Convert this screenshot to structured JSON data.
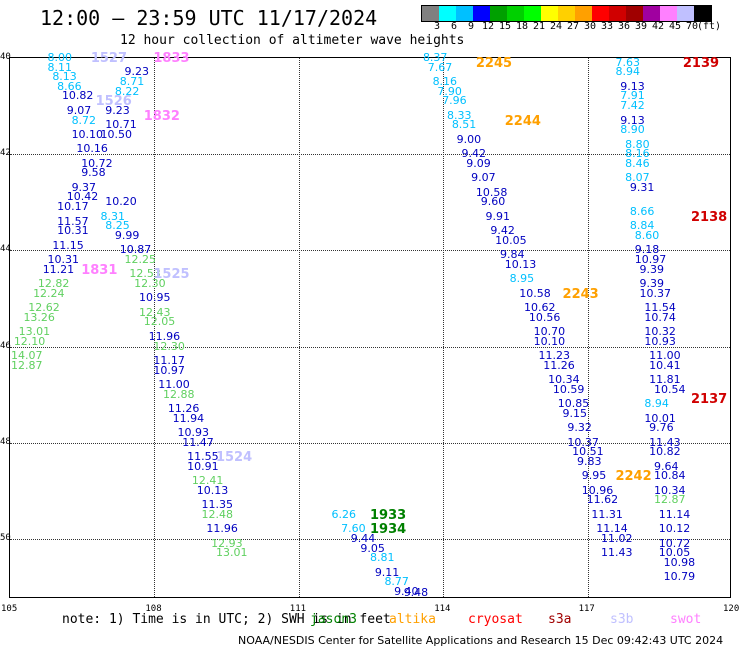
{
  "title": "12:00 — 23:59 UTC 11/17/2024",
  "subtitle": "12 hour collection of altimeter wave heights",
  "colorbar": {
    "colors": [
      "#808080",
      "#00ffff",
      "#00c0ff",
      "#0000ff",
      "#00a000",
      "#00d000",
      "#00ff00",
      "#ffff00",
      "#ffd000",
      "#ffa000",
      "#ff0000",
      "#d00000",
      "#a00000",
      "#a000a0",
      "#ff80ff",
      "#c0c0ff",
      "#000000"
    ],
    "ticks": [
      "3",
      "6",
      "9",
      "12",
      "15",
      "18",
      "21",
      "24",
      "27",
      "30",
      "33",
      "36",
      "39",
      "42",
      "45",
      "70",
      "(ft)"
    ]
  },
  "axes": {
    "lat_labels": [
      "40",
      "42",
      "44",
      "46",
      "48",
      "50"
    ],
    "lon_labels": [
      "105",
      "108",
      "111",
      "114",
      "117",
      "120"
    ]
  },
  "observations": [
    {
      "value": "8.00",
      "lon": 105.8,
      "lat": 40.0,
      "color": "#00c0ff"
    },
    {
      "value": "8.11",
      "lon": 105.8,
      "lat": 40.2,
      "color": "#00c0ff"
    },
    {
      "value": "8.13",
      "lon": 105.9,
      "lat": 40.4,
      "color": "#00c0ff"
    },
    {
      "value": "8.66",
      "lon": 106.0,
      "lat": 40.6,
      "color": "#00c0ff"
    },
    {
      "value": "10.82",
      "lon": 106.1,
      "lat": 40.8,
      "color": "#0000c0"
    },
    {
      "value": "9.07",
      "lon": 106.2,
      "lat": 41.1,
      "color": "#0000c0"
    },
    {
      "value": "8.72",
      "lon": 106.3,
      "lat": 41.3,
      "color": "#00c0ff"
    },
    {
      "value": "10.10",
      "lon": 106.3,
      "lat": 41.6,
      "color": "#0000c0"
    },
    {
      "value": "10.16",
      "lon": 106.4,
      "lat": 41.9,
      "color": "#0000c0"
    },
    {
      "value": "10.72",
      "lon": 106.5,
      "lat": 42.2,
      "color": "#0000c0"
    },
    {
      "value": "9.58",
      "lon": 106.5,
      "lat": 42.4,
      "color": "#0000c0"
    },
    {
      "value": "9.37",
      "lon": 106.3,
      "lat": 42.7,
      "color": "#0000c0"
    },
    {
      "value": "10.42",
      "lon": 106.2,
      "lat": 42.9,
      "color": "#0000c0"
    },
    {
      "value": "10.17",
      "lon": 106.0,
      "lat": 43.1,
      "color": "#0000c0"
    },
    {
      "value": "11.57",
      "lon": 106.0,
      "lat": 43.4,
      "color": "#0000c0"
    },
    {
      "value": "10.31",
      "lon": 106.0,
      "lat": 43.6,
      "color": "#0000c0"
    },
    {
      "value": "11.15",
      "lon": 105.9,
      "lat": 43.9,
      "color": "#0000c0"
    },
    {
      "value": "10.31",
      "lon": 105.8,
      "lat": 44.2,
      "color": "#0000c0"
    },
    {
      "value": "11.21",
      "lon": 105.7,
      "lat": 44.4,
      "color": "#0000c0"
    },
    {
      "value": "12.82",
      "lon": 105.6,
      "lat": 44.7,
      "color": "#60d060"
    },
    {
      "value": "12.24",
      "lon": 105.5,
      "lat": 44.9,
      "color": "#60d060"
    },
    {
      "value": "12.62",
      "lon": 105.4,
      "lat": 45.2,
      "color": "#60d060"
    },
    {
      "value": "13.26",
      "lon": 105.3,
      "lat": 45.4,
      "color": "#60d060"
    },
    {
      "value": "13.01",
      "lon": 105.2,
      "lat": 45.7,
      "color": "#60d060"
    },
    {
      "value": "12.10",
      "lon": 105.1,
      "lat": 45.9,
      "color": "#60d060"
    },
    {
      "value": "14.07",
      "lon": 105.0,
      "lat": 46.2,
      "color": "#60d060"
    },
    {
      "value": "12.87",
      "lon": 105.0,
      "lat": 46.4,
      "color": "#60d060"
    },
    {
      "value": "9.23",
      "lon": 107.4,
      "lat": 40.3,
      "color": "#0000c0"
    },
    {
      "value": "8.71",
      "lon": 107.3,
      "lat": 40.5,
      "color": "#00c0ff"
    },
    {
      "value": "8.22",
      "lon": 107.2,
      "lat": 40.7,
      "color": "#00c0ff"
    },
    {
      "value": "9.23",
      "lon": 107.0,
      "lat": 41.1,
      "color": "#0000c0"
    },
    {
      "value": "10.71",
      "lon": 107.0,
      "lat": 41.4,
      "color": "#0000c0"
    },
    {
      "value": "10.50",
      "lon": 106.9,
      "lat": 41.6,
      "color": "#0000c0"
    },
    {
      "value": "10.20",
      "lon": 107.0,
      "lat": 43.0,
      "color": "#0000c0"
    },
    {
      "value": "8.31",
      "lon": 106.9,
      "lat": 43.3,
      "color": "#00c0ff"
    },
    {
      "value": "8.25",
      "lon": 107.0,
      "lat": 43.5,
      "color": "#00c0ff"
    },
    {
      "value": "9.99",
      "lon": 107.2,
      "lat": 43.7,
      "color": "#0000c0"
    },
    {
      "value": "10.87",
      "lon": 107.3,
      "lat": 44.0,
      "color": "#0000c0"
    },
    {
      "value": "12.25",
      "lon": 107.4,
      "lat": 44.2,
      "color": "#60d060"
    },
    {
      "value": "12.53",
      "lon": 107.5,
      "lat": 44.5,
      "color": "#60d060"
    },
    {
      "value": "12.30",
      "lon": 107.6,
      "lat": 44.7,
      "color": "#60d060"
    },
    {
      "value": "10.95",
      "lon": 107.7,
      "lat": 45.0,
      "color": "#0000c0"
    },
    {
      "value": "12.43",
      "lon": 107.7,
      "lat": 45.3,
      "color": "#60d060"
    },
    {
      "value": "12.05",
      "lon": 107.8,
      "lat": 45.5,
      "color": "#60d060"
    },
    {
      "value": "11.96",
      "lon": 107.9,
      "lat": 45.8,
      "color": "#0000c0"
    },
    {
      "value": "12.30",
      "lon": 108.0,
      "lat": 46.0,
      "color": "#60d060"
    },
    {
      "value": "11.17",
      "lon": 108.0,
      "lat": 46.3,
      "color": "#0000c0"
    },
    {
      "value": "10.97",
      "lon": 108.0,
      "lat": 46.5,
      "color": "#0000c0"
    },
    {
      "value": "11.00",
      "lon": 108.1,
      "lat": 46.8,
      "color": "#0000c0"
    },
    {
      "value": "12.88",
      "lon": 108.2,
      "lat": 47.0,
      "color": "#60d060"
    },
    {
      "value": "11.26",
      "lon": 108.3,
      "lat": 47.3,
      "color": "#0000c0"
    },
    {
      "value": "11.94",
      "lon": 108.4,
      "lat": 47.5,
      "color": "#0000c0"
    },
    {
      "value": "10.93",
      "lon": 108.5,
      "lat": 47.8,
      "color": "#0000c0"
    },
    {
      "value": "11.47",
      "lon": 108.6,
      "lat": 48.0,
      "color": "#0000c0"
    },
    {
      "value": "11.55",
      "lon": 108.7,
      "lat": 48.3,
      "color": "#0000c0"
    },
    {
      "value": "10.91",
      "lon": 108.7,
      "lat": 48.5,
      "color": "#0000c0"
    },
    {
      "value": "12.41",
      "lon": 108.8,
      "lat": 48.8,
      "color": "#60d060"
    },
    {
      "value": "10.13",
      "lon": 108.9,
      "lat": 49.0,
      "color": "#0000c0"
    },
    {
      "value": "11.35",
      "lon": 109.0,
      "lat": 49.3,
      "color": "#0000c0"
    },
    {
      "value": "12.48",
      "lon": 109.0,
      "lat": 49.5,
      "color": "#60d060"
    },
    {
      "value": "11.96",
      "lon": 109.1,
      "lat": 49.8,
      "color": "#0000c0"
    },
    {
      "value": "12.93",
      "lon": 109.2,
      "lat": 50.1,
      "color": "#60d060"
    },
    {
      "value": "13.01",
      "lon": 109.3,
      "lat": 50.3,
      "color": "#60d060"
    },
    {
      "value": "6.26",
      "lon": 111.7,
      "lat": 49.5,
      "color": "#00c0ff"
    },
    {
      "value": "7.60",
      "lon": 111.9,
      "lat": 49.8,
      "color": "#00c0ff"
    },
    {
      "value": "9.44",
      "lon": 112.1,
      "lat": 50.0,
      "color": "#0000c0"
    },
    {
      "value": "9.05",
      "lon": 112.3,
      "lat": 50.2,
      "color": "#0000c0"
    },
    {
      "value": "8.81",
      "lon": 112.5,
      "lat": 50.4,
      "color": "#00c0ff"
    },
    {
      "value": "9.11",
      "lon": 112.6,
      "lat": 50.7,
      "color": "#0000c0"
    },
    {
      "value": "8.77",
      "lon": 112.8,
      "lat": 50.9,
      "color": "#00c0ff"
    },
    {
      "value": "9.40",
      "lon": 113.0,
      "lat": 51.1,
      "color": "#0000c0"
    },
    {
      "value": "9.48",
      "lon": 113.2,
      "lat": 51.3,
      "color": "#0000c0"
    },
    {
      "value": "8.37",
      "lon": 113.6,
      "lat": 40.0,
      "color": "#00c0ff"
    },
    {
      "value": "7.67",
      "lon": 113.7,
      "lat": 40.2,
      "color": "#00c0ff"
    },
    {
      "value": "8.16",
      "lon": 113.8,
      "lat": 40.5,
      "color": "#00c0ff"
    },
    {
      "value": "7.90",
      "lon": 113.9,
      "lat": 40.7,
      "color": "#00c0ff"
    },
    {
      "value": "7.96",
      "lon": 114.0,
      "lat": 40.9,
      "color": "#00c0ff"
    },
    {
      "value": "8.33",
      "lon": 114.1,
      "lat": 41.2,
      "color": "#00c0ff"
    },
    {
      "value": "8.51",
      "lon": 114.2,
      "lat": 41.4,
      "color": "#00c0ff"
    },
    {
      "value": "9.00",
      "lon": 114.3,
      "lat": 41.7,
      "color": "#0000c0"
    },
    {
      "value": "9.42",
      "lon": 114.4,
      "lat": 42.0,
      "color": "#0000c0"
    },
    {
      "value": "9.09",
      "lon": 114.5,
      "lat": 42.2,
      "color": "#0000c0"
    },
    {
      "value": "9.07",
      "lon": 114.6,
      "lat": 42.5,
      "color": "#0000c0"
    },
    {
      "value": "10.58",
      "lon": 114.7,
      "lat": 42.8,
      "color": "#0000c0"
    },
    {
      "value": "9.60",
      "lon": 114.8,
      "lat": 43.0,
      "color": "#0000c0"
    },
    {
      "value": "9.91",
      "lon": 114.9,
      "lat": 43.3,
      "color": "#0000c0"
    },
    {
      "value": "9.42",
      "lon": 115.0,
      "lat": 43.6,
      "color": "#0000c0"
    },
    {
      "value": "10.05",
      "lon": 115.1,
      "lat": 43.8,
      "color": "#0000c0"
    },
    {
      "value": "9.84",
      "lon": 115.2,
      "lat": 44.1,
      "color": "#0000c0"
    },
    {
      "value": "10.13",
      "lon": 115.3,
      "lat": 44.3,
      "color": "#0000c0"
    },
    {
      "value": "8.95",
      "lon": 115.4,
      "lat": 44.6,
      "color": "#00c0ff"
    },
    {
      "value": "10.58",
      "lon": 115.6,
      "lat": 44.9,
      "color": "#0000c0"
    },
    {
      "value": "10.62",
      "lon": 115.7,
      "lat": 45.2,
      "color": "#0000c0"
    },
    {
      "value": "10.56",
      "lon": 115.8,
      "lat": 45.4,
      "color": "#0000c0"
    },
    {
      "value": "10.70",
      "lon": 115.9,
      "lat": 45.7,
      "color": "#0000c0"
    },
    {
      "value": "10.10",
      "lon": 115.9,
      "lat": 45.9,
      "color": "#0000c0"
    },
    {
      "value": "11.23",
      "lon": 116.0,
      "lat": 46.2,
      "color": "#0000c0"
    },
    {
      "value": "11.26",
      "lon": 116.1,
      "lat": 46.4,
      "color": "#0000c0"
    },
    {
      "value": "10.34",
      "lon": 116.2,
      "lat": 46.7,
      "color": "#0000c0"
    },
    {
      "value": "10.59",
      "lon": 116.3,
      "lat": 46.9,
      "color": "#0000c0"
    },
    {
      "value": "10.85",
      "lon": 116.4,
      "lat": 47.2,
      "color": "#0000c0"
    },
    {
      "value": "9.15",
      "lon": 116.5,
      "lat": 47.4,
      "color": "#0000c0"
    },
    {
      "value": "9.32",
      "lon": 116.6,
      "lat": 47.7,
      "color": "#0000c0"
    },
    {
      "value": "10.37",
      "lon": 116.6,
      "lat": 48.0,
      "color": "#0000c0"
    },
    {
      "value": "10.51",
      "lon": 116.7,
      "lat": 48.2,
      "color": "#0000c0"
    },
    {
      "value": "9.83",
      "lon": 116.8,
      "lat": 48.4,
      "color": "#0000c0"
    },
    {
      "value": "9.95",
      "lon": 116.9,
      "lat": 48.7,
      "color": "#0000c0"
    },
    {
      "value": "10.96",
      "lon": 116.9,
      "lat": 49.0,
      "color": "#0000c0"
    },
    {
      "value": "11.62",
      "lon": 117.0,
      "lat": 49.2,
      "color": "#0000c0"
    },
    {
      "value": "11.31",
      "lon": 117.1,
      "lat": 49.5,
      "color": "#0000c0"
    },
    {
      "value": "11.14",
      "lon": 117.2,
      "lat": 49.8,
      "color": "#0000c0"
    },
    {
      "value": "11.02",
      "lon": 117.3,
      "lat": 50.0,
      "color": "#0000c0"
    },
    {
      "value": "11.43",
      "lon": 117.3,
      "lat": 50.3,
      "color": "#0000c0"
    },
    {
      "value": "7.63",
      "lon": 117.6,
      "lat": 40.1,
      "color": "#00c0ff"
    },
    {
      "value": "8.94",
      "lon": 117.6,
      "lat": 40.3,
      "color": "#00c0ff"
    },
    {
      "value": "9.13",
      "lon": 117.7,
      "lat": 40.6,
      "color": "#0000c0"
    },
    {
      "value": "7.91",
      "lon": 117.7,
      "lat": 40.8,
      "color": "#00c0ff"
    },
    {
      "value": "7.42",
      "lon": 117.7,
      "lat": 41.0,
      "color": "#00c0ff"
    },
    {
      "value": "9.13",
      "lon": 117.7,
      "lat": 41.3,
      "color": "#0000c0"
    },
    {
      "value": "8.90",
      "lon": 117.7,
      "lat": 41.5,
      "color": "#00c0ff"
    },
    {
      "value": "8.80",
      "lon": 117.8,
      "lat": 41.8,
      "color": "#00c0ff"
    },
    {
      "value": "8.16",
      "lon": 117.8,
      "lat": 42.0,
      "color": "#00c0ff"
    },
    {
      "value": "8.46",
      "lon": 117.8,
      "lat": 42.2,
      "color": "#00c0ff"
    },
    {
      "value": "8.07",
      "lon": 117.8,
      "lat": 42.5,
      "color": "#00c0ff"
    },
    {
      "value": "9.31",
      "lon": 117.9,
      "lat": 42.7,
      "color": "#0000c0"
    },
    {
      "value": "8.66",
      "lon": 117.9,
      "lat": 43.2,
      "color": "#00c0ff"
    },
    {
      "value": "8.84",
      "lon": 117.9,
      "lat": 43.5,
      "color": "#00c0ff"
    },
    {
      "value": "8.60",
      "lon": 118.0,
      "lat": 43.7,
      "color": "#00c0ff"
    },
    {
      "value": "9.18",
      "lon": 118.0,
      "lat": 44.0,
      "color": "#0000c0"
    },
    {
      "value": "10.97",
      "lon": 118.0,
      "lat": 44.2,
      "color": "#0000c0"
    },
    {
      "value": "9.39",
      "lon": 118.1,
      "lat": 44.4,
      "color": "#0000c0"
    },
    {
      "value": "9.39",
      "lon": 118.1,
      "lat": 44.7,
      "color": "#0000c0"
    },
    {
      "value": "10.37",
      "lon": 118.1,
      "lat": 44.9,
      "color": "#0000c0"
    },
    {
      "value": "11.54",
      "lon": 118.2,
      "lat": 45.2,
      "color": "#0000c0"
    },
    {
      "value": "10.74",
      "lon": 118.2,
      "lat": 45.4,
      "color": "#0000c0"
    },
    {
      "value": "10.32",
      "lon": 118.2,
      "lat": 45.7,
      "color": "#0000c0"
    },
    {
      "value": "10.93",
      "lon": 118.2,
      "lat": 45.9,
      "color": "#0000c0"
    },
    {
      "value": "11.00",
      "lon": 118.3,
      "lat": 46.2,
      "color": "#0000c0"
    },
    {
      "value": "10.41",
      "lon": 118.3,
      "lat": 46.4,
      "color": "#0000c0"
    },
    {
      "value": "11.81",
      "lon": 118.3,
      "lat": 46.7,
      "color": "#0000c0"
    },
    {
      "value": "10.54",
      "lon": 118.4,
      "lat": 46.9,
      "color": "#0000c0"
    },
    {
      "value": "8.94",
      "lon": 118.2,
      "lat": 47.2,
      "color": "#00c0ff"
    },
    {
      "value": "10.01",
      "lon": 118.2,
      "lat": 47.5,
      "color": "#0000c0"
    },
    {
      "value": "9.76",
      "lon": 118.3,
      "lat": 47.7,
      "color": "#0000c0"
    },
    {
      "value": "11.43",
      "lon": 118.3,
      "lat": 48.0,
      "color": "#0000c0"
    },
    {
      "value": "10.82",
      "lon": 118.3,
      "lat": 48.2,
      "color": "#0000c0"
    },
    {
      "value": "9.64",
      "lon": 118.4,
      "lat": 48.5,
      "color": "#0000c0"
    },
    {
      "value": "10.84",
      "lon": 118.4,
      "lat": 48.7,
      "color": "#0000c0"
    },
    {
      "value": "10.34",
      "lon": 118.4,
      "lat": 49.0,
      "color": "#0000c0"
    },
    {
      "value": "12.87",
      "lon": 118.4,
      "lat": 49.2,
      "color": "#60d060"
    },
    {
      "value": "11.14",
      "lon": 118.5,
      "lat": 49.5,
      "color": "#0000c0"
    },
    {
      "value": "10.12",
      "lon": 118.5,
      "lat": 49.8,
      "color": "#0000c0"
    },
    {
      "value": "10.72",
      "lon": 118.5,
      "lat": 50.1,
      "color": "#0000c0"
    },
    {
      "value": "10.05",
      "lon": 118.5,
      "lat": 50.3,
      "color": "#0000c0"
    },
    {
      "value": "10.98",
      "lon": 118.6,
      "lat": 50.5,
      "color": "#0000c0"
    },
    {
      "value": "10.79",
      "lon": 118.6,
      "lat": 50.8,
      "color": "#0000c0"
    }
  ],
  "time_labels": [
    {
      "value": "1527",
      "lon": 106.7,
      "lat": 40.0,
      "color": "#c0c0ff"
    },
    {
      "value": "1833",
      "lon": 108.0,
      "lat": 40.0,
      "color": "#ff80ff"
    },
    {
      "value": "1526",
      "lon": 106.8,
      "lat": 40.9,
      "color": "#c0c0ff"
    },
    {
      "value": "1832",
      "lon": 107.8,
      "lat": 41.2,
      "color": "#ff80ff"
    },
    {
      "value": "1831",
      "lon": 106.5,
      "lat": 44.4,
      "color": "#ff80ff"
    },
    {
      "value": "1525",
      "lon": 108.0,
      "lat": 44.5,
      "color": "#c0c0ff"
    },
    {
      "value": "1524",
      "lon": 109.3,
      "lat": 48.3,
      "color": "#c0c0ff"
    },
    {
      "value": "1933",
      "lon": 112.5,
      "lat": 49.5,
      "color": "#008000"
    },
    {
      "value": "1934",
      "lon": 112.5,
      "lat": 49.8,
      "color": "#008000"
    },
    {
      "value": "2245",
      "lon": 114.7,
      "lat": 40.1,
      "color": "#ffa000"
    },
    {
      "value": "2244",
      "lon": 115.3,
      "lat": 41.3,
      "color": "#ffa000"
    },
    {
      "value": "2243",
      "lon": 116.5,
      "lat": 44.9,
      "color": "#ffa000"
    },
    {
      "value": "2242",
      "lon": 117.6,
      "lat": 48.7,
      "color": "#ffa000"
    },
    {
      "value": "2139",
      "lon": 119.0,
      "lat": 40.1,
      "color": "#d00000"
    },
    {
      "value": "2138",
      "lon": 119.2,
      "lat": 43.3,
      "color": "#d00000"
    },
    {
      "value": "2137",
      "lon": 119.9,
      "lat": 47.1,
      "color": "#d00000"
    }
  ],
  "footer": {
    "note": "note:  1) Time is in UTC; 2) SWH is in feet",
    "satellites": [
      {
        "name": "jason3",
        "color": "#008000"
      },
      {
        "name": "altika",
        "color": "#ffa000"
      },
      {
        "name": "cryosat",
        "color": "#ff0000"
      },
      {
        "name": "s3a",
        "color": "#a00000"
      },
      {
        "name": "s3b",
        "color": "#c0c0ff"
      },
      {
        "name": "swot",
        "color": "#ff80ff"
      }
    ],
    "credit": "NOAA/NESDIS Center for Satellite Applications and Research     15 Dec 09:42:43 UTC 2024"
  }
}
